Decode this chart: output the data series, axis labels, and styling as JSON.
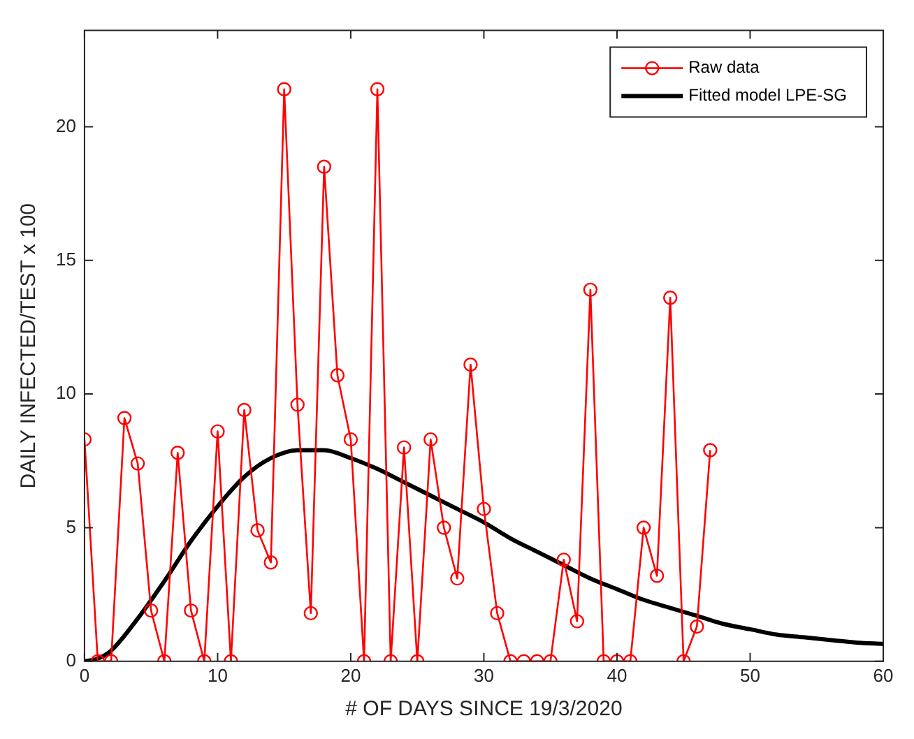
{
  "chart_data": {
    "type": "line",
    "xlabel": "# OF DAYS SINCE 19/3/2020",
    "ylabel": "DAILY INFECTED/TEST x 100",
    "xlim": [
      0,
      60
    ],
    "xticks": [
      0,
      10,
      20,
      30,
      40,
      50,
      60
    ],
    "ylim": [
      0,
      23.6
    ],
    "yticks": [
      0,
      5,
      10,
      15,
      20
    ],
    "grid": false,
    "legend": "top right",
    "series": [
      {
        "name": "Raw data",
        "color": "#ff0000",
        "marker": "circle",
        "x": [
          0,
          1,
          2,
          3,
          4,
          5,
          6,
          7,
          8,
          9,
          10,
          11,
          12,
          13,
          14,
          15,
          16,
          17,
          18,
          19,
          20,
          21,
          22,
          23,
          24,
          25,
          26,
          27,
          28,
          29,
          30,
          31,
          32,
          33,
          34,
          35,
          36,
          37,
          38,
          39,
          40,
          41,
          42,
          43,
          44,
          45,
          46,
          47
        ],
        "values": [
          8.3,
          0,
          0,
          9.1,
          7.4,
          1.9,
          0,
          7.8,
          1.9,
          0,
          8.6,
          0,
          9.4,
          4.9,
          3.7,
          21.4,
          9.6,
          1.8,
          18.5,
          10.7,
          8.3,
          0,
          21.4,
          0,
          8.0,
          0,
          8.3,
          5.0,
          3.1,
          11.1,
          5.7,
          1.8,
          0,
          0,
          0,
          0,
          3.8,
          1.5,
          13.9,
          0,
          0,
          0,
          5.0,
          3.2,
          13.6,
          0,
          1.3,
          7.9
        ]
      },
      {
        "name": "Fitted model LPE-SG",
        "color": "#000000",
        "marker": "none",
        "x": [
          0,
          1,
          2,
          4,
          6,
          8,
          10,
          12,
          14,
          16,
          17,
          18,
          20,
          22,
          24,
          26,
          28,
          30,
          32,
          34,
          36,
          38,
          40,
          42,
          44,
          46,
          48,
          50,
          52,
          54,
          56,
          58,
          60
        ],
        "values": [
          0,
          0.1,
          0.4,
          1.6,
          3.0,
          4.5,
          5.8,
          6.9,
          7.6,
          7.9,
          7.9,
          7.9,
          7.6,
          7.2,
          6.7,
          6.2,
          5.7,
          5.2,
          4.6,
          4.1,
          3.6,
          3.1,
          2.7,
          2.3,
          2.0,
          1.7,
          1.4,
          1.2,
          1.0,
          0.9,
          0.8,
          0.7,
          0.65
        ]
      }
    ]
  }
}
